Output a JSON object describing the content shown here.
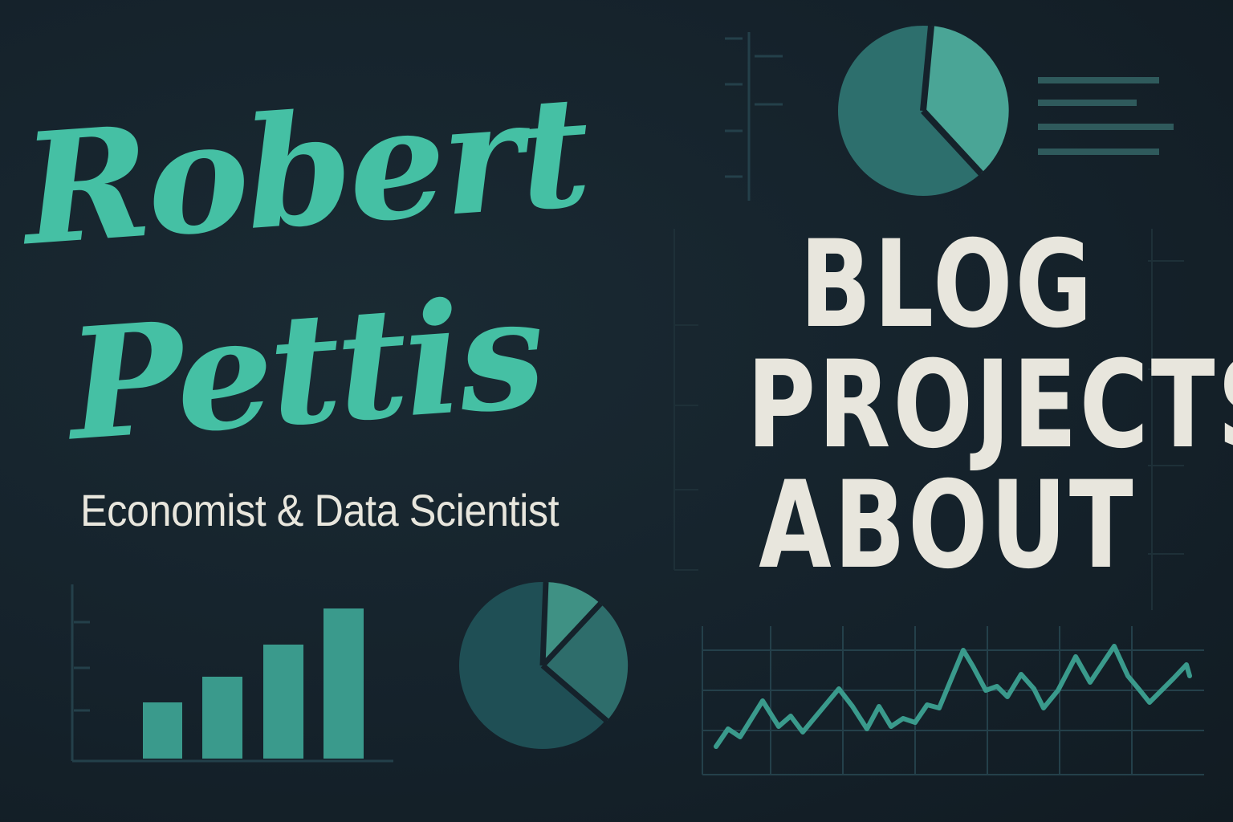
{
  "header": {
    "name_line_1": "Robert",
    "name_line_2": "Pettis",
    "subtitle": "Economist & Data Scientist"
  },
  "nav": {
    "items": [
      {
        "label": "BLOG"
      },
      {
        "label": "PROJECTS"
      },
      {
        "label": "ABOUT"
      }
    ]
  },
  "theme": {
    "background": "#15222b",
    "accent": "#45c0a4",
    "accent_dark": "#2f7a77",
    "text_light": "#e8e6dd",
    "grid": "#24404a"
  }
}
